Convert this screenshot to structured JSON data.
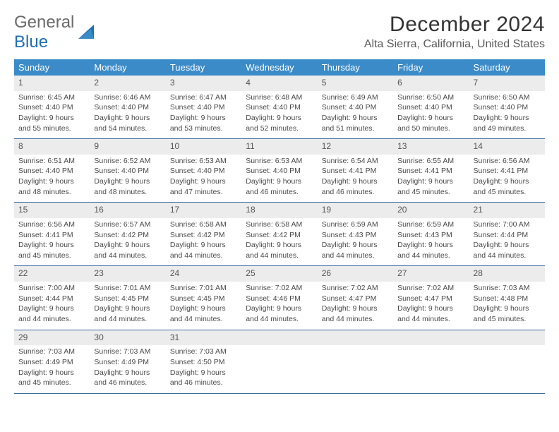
{
  "logo": {
    "text1": "General",
    "text2": "Blue"
  },
  "title": "December 2024",
  "location": "Alta Sierra, California, United States",
  "colors": {
    "header_bg": "#3b8bc9",
    "header_text": "#ffffff",
    "daynum_bg": "#ececec",
    "rule": "#3b6ea0",
    "body_text": "#4a4a4a",
    "logo_blue": "#1f6fb2"
  },
  "weekdays": [
    "Sunday",
    "Monday",
    "Tuesday",
    "Wednesday",
    "Thursday",
    "Friday",
    "Saturday"
  ],
  "weeks": [
    [
      {
        "n": "1",
        "sr": "Sunrise: 6:45 AM",
        "ss": "Sunset: 4:40 PM",
        "d1": "Daylight: 9 hours",
        "d2": "and 55 minutes."
      },
      {
        "n": "2",
        "sr": "Sunrise: 6:46 AM",
        "ss": "Sunset: 4:40 PM",
        "d1": "Daylight: 9 hours",
        "d2": "and 54 minutes."
      },
      {
        "n": "3",
        "sr": "Sunrise: 6:47 AM",
        "ss": "Sunset: 4:40 PM",
        "d1": "Daylight: 9 hours",
        "d2": "and 53 minutes."
      },
      {
        "n": "4",
        "sr": "Sunrise: 6:48 AM",
        "ss": "Sunset: 4:40 PM",
        "d1": "Daylight: 9 hours",
        "d2": "and 52 minutes."
      },
      {
        "n": "5",
        "sr": "Sunrise: 6:49 AM",
        "ss": "Sunset: 4:40 PM",
        "d1": "Daylight: 9 hours",
        "d2": "and 51 minutes."
      },
      {
        "n": "6",
        "sr": "Sunrise: 6:50 AM",
        "ss": "Sunset: 4:40 PM",
        "d1": "Daylight: 9 hours",
        "d2": "and 50 minutes."
      },
      {
        "n": "7",
        "sr": "Sunrise: 6:50 AM",
        "ss": "Sunset: 4:40 PM",
        "d1": "Daylight: 9 hours",
        "d2": "and 49 minutes."
      }
    ],
    [
      {
        "n": "8",
        "sr": "Sunrise: 6:51 AM",
        "ss": "Sunset: 4:40 PM",
        "d1": "Daylight: 9 hours",
        "d2": "and 48 minutes."
      },
      {
        "n": "9",
        "sr": "Sunrise: 6:52 AM",
        "ss": "Sunset: 4:40 PM",
        "d1": "Daylight: 9 hours",
        "d2": "and 48 minutes."
      },
      {
        "n": "10",
        "sr": "Sunrise: 6:53 AM",
        "ss": "Sunset: 4:40 PM",
        "d1": "Daylight: 9 hours",
        "d2": "and 47 minutes."
      },
      {
        "n": "11",
        "sr": "Sunrise: 6:53 AM",
        "ss": "Sunset: 4:40 PM",
        "d1": "Daylight: 9 hours",
        "d2": "and 46 minutes."
      },
      {
        "n": "12",
        "sr": "Sunrise: 6:54 AM",
        "ss": "Sunset: 4:41 PM",
        "d1": "Daylight: 9 hours",
        "d2": "and 46 minutes."
      },
      {
        "n": "13",
        "sr": "Sunrise: 6:55 AM",
        "ss": "Sunset: 4:41 PM",
        "d1": "Daylight: 9 hours",
        "d2": "and 45 minutes."
      },
      {
        "n": "14",
        "sr": "Sunrise: 6:56 AM",
        "ss": "Sunset: 4:41 PM",
        "d1": "Daylight: 9 hours",
        "d2": "and 45 minutes."
      }
    ],
    [
      {
        "n": "15",
        "sr": "Sunrise: 6:56 AM",
        "ss": "Sunset: 4:41 PM",
        "d1": "Daylight: 9 hours",
        "d2": "and 45 minutes."
      },
      {
        "n": "16",
        "sr": "Sunrise: 6:57 AM",
        "ss": "Sunset: 4:42 PM",
        "d1": "Daylight: 9 hours",
        "d2": "and 44 minutes."
      },
      {
        "n": "17",
        "sr": "Sunrise: 6:58 AM",
        "ss": "Sunset: 4:42 PM",
        "d1": "Daylight: 9 hours",
        "d2": "and 44 minutes."
      },
      {
        "n": "18",
        "sr": "Sunrise: 6:58 AM",
        "ss": "Sunset: 4:42 PM",
        "d1": "Daylight: 9 hours",
        "d2": "and 44 minutes."
      },
      {
        "n": "19",
        "sr": "Sunrise: 6:59 AM",
        "ss": "Sunset: 4:43 PM",
        "d1": "Daylight: 9 hours",
        "d2": "and 44 minutes."
      },
      {
        "n": "20",
        "sr": "Sunrise: 6:59 AM",
        "ss": "Sunset: 4:43 PM",
        "d1": "Daylight: 9 hours",
        "d2": "and 44 minutes."
      },
      {
        "n": "21",
        "sr": "Sunrise: 7:00 AM",
        "ss": "Sunset: 4:44 PM",
        "d1": "Daylight: 9 hours",
        "d2": "and 44 minutes."
      }
    ],
    [
      {
        "n": "22",
        "sr": "Sunrise: 7:00 AM",
        "ss": "Sunset: 4:44 PM",
        "d1": "Daylight: 9 hours",
        "d2": "and 44 minutes."
      },
      {
        "n": "23",
        "sr": "Sunrise: 7:01 AM",
        "ss": "Sunset: 4:45 PM",
        "d1": "Daylight: 9 hours",
        "d2": "and 44 minutes."
      },
      {
        "n": "24",
        "sr": "Sunrise: 7:01 AM",
        "ss": "Sunset: 4:45 PM",
        "d1": "Daylight: 9 hours",
        "d2": "and 44 minutes."
      },
      {
        "n": "25",
        "sr": "Sunrise: 7:02 AM",
        "ss": "Sunset: 4:46 PM",
        "d1": "Daylight: 9 hours",
        "d2": "and 44 minutes."
      },
      {
        "n": "26",
        "sr": "Sunrise: 7:02 AM",
        "ss": "Sunset: 4:47 PM",
        "d1": "Daylight: 9 hours",
        "d2": "and 44 minutes."
      },
      {
        "n": "27",
        "sr": "Sunrise: 7:02 AM",
        "ss": "Sunset: 4:47 PM",
        "d1": "Daylight: 9 hours",
        "d2": "and 44 minutes."
      },
      {
        "n": "28",
        "sr": "Sunrise: 7:03 AM",
        "ss": "Sunset: 4:48 PM",
        "d1": "Daylight: 9 hours",
        "d2": "and 45 minutes."
      }
    ],
    [
      {
        "n": "29",
        "sr": "Sunrise: 7:03 AM",
        "ss": "Sunset: 4:49 PM",
        "d1": "Daylight: 9 hours",
        "d2": "and 45 minutes."
      },
      {
        "n": "30",
        "sr": "Sunrise: 7:03 AM",
        "ss": "Sunset: 4:49 PM",
        "d1": "Daylight: 9 hours",
        "d2": "and 46 minutes."
      },
      {
        "n": "31",
        "sr": "Sunrise: 7:03 AM",
        "ss": "Sunset: 4:50 PM",
        "d1": "Daylight: 9 hours",
        "d2": "and 46 minutes."
      },
      null,
      null,
      null,
      null
    ]
  ]
}
